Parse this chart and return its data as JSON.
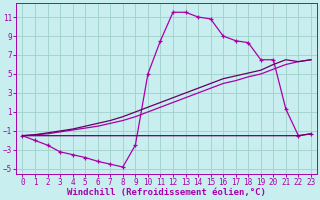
{
  "xlabel": "Windchill (Refroidissement éolien,°C)",
  "bg_color": "#c8eef0",
  "grid_color": "#a0d0c8",
  "line_color": "#aa00aa",
  "line_color2": "#660066",
  "xlim": [
    -0.5,
    23.5
  ],
  "ylim": [
    -5.5,
    12.5
  ],
  "xticks": [
    0,
    1,
    2,
    3,
    4,
    5,
    6,
    7,
    8,
    9,
    10,
    11,
    12,
    13,
    14,
    15,
    16,
    17,
    18,
    19,
    20,
    21,
    22,
    23
  ],
  "yticks": [
    -5,
    -3,
    -1,
    1,
    3,
    5,
    7,
    9,
    11
  ],
  "curve1_x": [
    0,
    1,
    2,
    3,
    4,
    5,
    6,
    7,
    8,
    9,
    10,
    11,
    12,
    13,
    14,
    15,
    16,
    17,
    18,
    19,
    20,
    21,
    22,
    23
  ],
  "curve1_y": [
    -1.5,
    -2.0,
    -2.5,
    -3.2,
    -3.5,
    -3.8,
    -4.2,
    -4.5,
    -4.8,
    -2.5,
    5.0,
    8.5,
    11.5,
    11.5,
    11.0,
    10.8,
    9.0,
    8.5,
    8.3,
    6.5,
    6.5,
    1.3,
    -1.5,
    -1.3
  ],
  "curve2_x": [
    0,
    1,
    2,
    3,
    4,
    5,
    6,
    7,
    8,
    9,
    10,
    11,
    12,
    13,
    14,
    15,
    16,
    17,
    18,
    19,
    20,
    21,
    22,
    23
  ],
  "curve2_y": [
    -1.5,
    -1.5,
    -1.5,
    -1.5,
    -1.5,
    -1.5,
    -1.5,
    -1.5,
    -1.5,
    -1.5,
    -1.5,
    -1.5,
    -1.5,
    -1.5,
    -1.5,
    -1.5,
    -1.5,
    -1.5,
    -1.5,
    -1.5,
    -1.5,
    -1.5,
    -1.5,
    -1.3
  ],
  "curve3_x": [
    0,
    1,
    2,
    3,
    4,
    5,
    6,
    7,
    8,
    9,
    10,
    11,
    12,
    13,
    14,
    15,
    16,
    17,
    18,
    19,
    20,
    21,
    22,
    23
  ],
  "curve3_y": [
    -1.5,
    -1.4,
    -1.3,
    -1.1,
    -0.9,
    -0.7,
    -0.5,
    -0.2,
    0.1,
    0.5,
    1.0,
    1.5,
    2.0,
    2.5,
    3.0,
    3.5,
    4.0,
    4.3,
    4.7,
    5.0,
    5.5,
    6.0,
    6.3,
    6.5
  ],
  "curve4_x": [
    0,
    1,
    2,
    3,
    4,
    5,
    6,
    7,
    8,
    9,
    10,
    11,
    12,
    13,
    14,
    15,
    16,
    17,
    18,
    19,
    20,
    21,
    22,
    23
  ],
  "curve4_y": [
    -1.5,
    -1.4,
    -1.2,
    -1.0,
    -0.8,
    -0.5,
    -0.2,
    0.1,
    0.5,
    1.0,
    1.5,
    2.0,
    2.5,
    3.0,
    3.5,
    4.0,
    4.5,
    4.8,
    5.1,
    5.4,
    6.0,
    6.5,
    6.3,
    6.5
  ],
  "fontsize_label": 6.5,
  "fontsize_tick": 5.5
}
